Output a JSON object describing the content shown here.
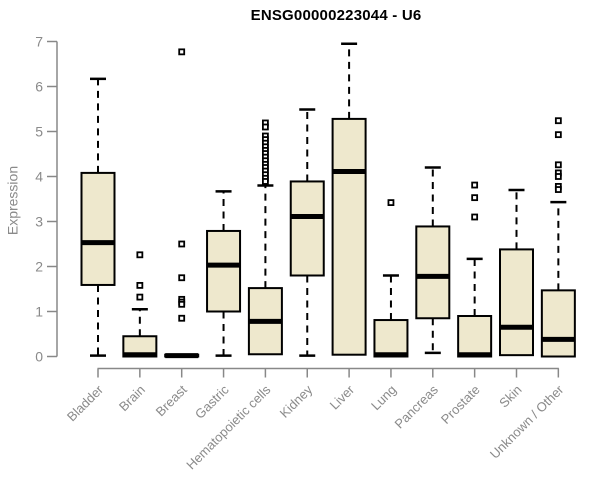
{
  "chart_data": {
    "type": "boxplot",
    "title": "ENSG00000223044 - U6",
    "xlabel": "",
    "ylabel": "Expression",
    "ylim": [
      0,
      7
    ],
    "yticks": [
      0,
      1,
      2,
      3,
      4,
      5,
      6,
      7
    ],
    "grid": false,
    "legend": "none",
    "colors": {
      "box_fill": "#EEE8CD",
      "box_stroke": "#000000",
      "median": "#000000",
      "axis": "#888888",
      "tick_label": "#8a8a8a",
      "title": "#000000",
      "background": "#ffffff"
    },
    "categories": [
      "Bladder",
      "Brain",
      "Breast",
      "Gastric",
      "Hematopoietic cells",
      "Kidney",
      "Liver",
      "Lung",
      "Pancreas",
      "Prostate",
      "Skin",
      "Unknown / Other"
    ],
    "series": [
      {
        "category": "Bladder",
        "whisker_low": 0.02,
        "q1": 1.59,
        "median": 2.53,
        "q3": 4.08,
        "whisker_high": 6.17,
        "outliers": []
      },
      {
        "category": "Brain",
        "whisker_low": 0.0,
        "q1": 0.0,
        "median": 0.04,
        "q3": 0.45,
        "whisker_high": 1.05,
        "outliers": [
          2.26,
          1.58,
          1.32
        ]
      },
      {
        "category": "Breast",
        "whisker_low": 0.0,
        "q1": 0.0,
        "median": 0.02,
        "q3": 0.04,
        "whisker_high": 0.04,
        "outliers": [
          6.77,
          2.5,
          1.75,
          1.27,
          1.21,
          1.16,
          0.85
        ]
      },
      {
        "category": "Gastric",
        "whisker_low": 0.02,
        "q1": 1.0,
        "median": 2.03,
        "q3": 2.79,
        "whisker_high": 3.67,
        "outliers": []
      },
      {
        "category": "Hematopoietic cells",
        "whisker_low": 0.02,
        "q1": 0.05,
        "median": 0.78,
        "q3": 1.52,
        "whisker_high": 3.8,
        "outliers": [
          5.19,
          5.1,
          4.9,
          4.82,
          4.74,
          4.66,
          4.58,
          4.51,
          4.43,
          4.35,
          4.27,
          4.2,
          4.12,
          4.04,
          3.96,
          3.89
        ]
      },
      {
        "category": "Kidney",
        "whisker_low": 0.02,
        "q1": 1.8,
        "median": 3.11,
        "q3": 3.89,
        "whisker_high": 5.49,
        "outliers": []
      },
      {
        "category": "Liver",
        "whisker_low": 0.02,
        "q1": 0.04,
        "median": 4.11,
        "q3": 5.28,
        "whisker_high": 6.95,
        "outliers": []
      },
      {
        "category": "Lung",
        "whisker_low": 0.0,
        "q1": 0.0,
        "median": 0.04,
        "q3": 0.81,
        "whisker_high": 1.8,
        "outliers": [
          3.42
        ]
      },
      {
        "category": "Pancreas",
        "whisker_low": 0.08,
        "q1": 0.85,
        "median": 1.78,
        "q3": 2.89,
        "whisker_high": 4.2,
        "outliers": []
      },
      {
        "category": "Prostate",
        "whisker_low": 0.0,
        "q1": 0.0,
        "median": 0.04,
        "q3": 0.9,
        "whisker_high": 2.17,
        "outliers": [
          3.81,
          3.53,
          3.1
        ]
      },
      {
        "category": "Skin",
        "whisker_low": 0.02,
        "q1": 0.03,
        "median": 0.65,
        "q3": 2.38,
        "whisker_high": 3.7,
        "outliers": []
      },
      {
        "category": "Unknown / Other",
        "whisker_low": 0.0,
        "q1": 0.0,
        "median": 0.38,
        "q3": 1.47,
        "whisker_high": 3.43,
        "outliers": [
          5.24,
          4.93,
          4.26,
          4.08,
          4.0,
          3.78,
          3.71
        ]
      }
    ]
  }
}
